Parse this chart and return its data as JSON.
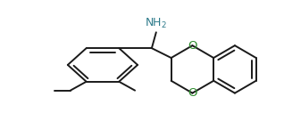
{
  "bg_color": "#ffffff",
  "line_color": "#1a1a1a",
  "o_color": "#2e8b2e",
  "n_color": "#2e7b8b",
  "lw": 1.4,
  "figsize": [
    3.18,
    1.36
  ],
  "dpi": 100
}
